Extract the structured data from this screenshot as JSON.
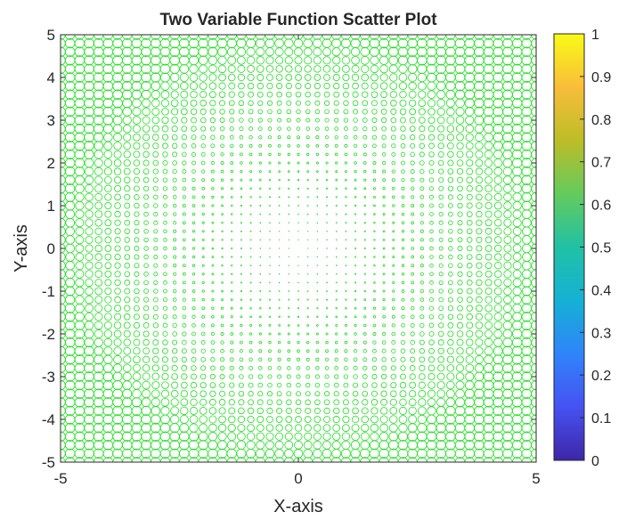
{
  "chart_data": {
    "type": "scatter",
    "title": "Two Variable Function Scatter Plot",
    "xlabel": "X-axis",
    "ylabel": "Y-axis",
    "xlim": [
      -5,
      5
    ],
    "ylim": [
      -5,
      5
    ],
    "xticks": [
      -5,
      0,
      5
    ],
    "yticks": [
      -5,
      -4,
      -3,
      -2,
      -1,
      0,
      1,
      2,
      3,
      4,
      5
    ],
    "grid": false,
    "marker": "circle",
    "marker_color": "#22dd22",
    "colormap": "parula",
    "colorbar": {
      "position": "right",
      "limits": [
        0,
        1
      ],
      "ticks": [
        0,
        0.1,
        0.2,
        0.3,
        0.4,
        0.5,
        0.6,
        0.7,
        0.8,
        0.9,
        1
      ],
      "tick_labels": [
        "0",
        "0.1",
        "0.2",
        "0.3",
        "0.4",
        "0.5",
        "0.6",
        "0.7",
        "0.8",
        "0.9",
        "1"
      ]
    },
    "series": [
      {
        "x_range": [
          -5,
          5
        ],
        "y_range": [
          -5,
          5
        ],
        "points_per_axis": 51,
        "marker_size_rule": "marker size grows with x^2 + y^2"
      }
    ]
  },
  "colors": {
    "marker": "#22dd22",
    "axis": "#262626",
    "colormap_stops": [
      "#3e26a8",
      "#4652f2",
      "#2f84fb",
      "#15b1d4",
      "#21c1a5",
      "#64cb5d",
      "#bdbd27",
      "#f9bd3a",
      "#f9fb15"
    ]
  }
}
